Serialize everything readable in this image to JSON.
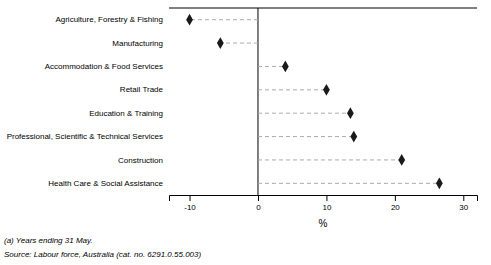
{
  "chart_data": {
    "type": "lollipop",
    "orientation": "horizontal",
    "categories": [
      "Agriculture, Forestry & Fishing",
      "Manufacturing",
      "Accommodation & Food Services",
      "Retail Trade",
      "Education & Training",
      "Professional, Scientific & Technical Services",
      "Construction",
      "Health Care & Social Assistance"
    ],
    "values": [
      -10.0,
      -5.5,
      4.0,
      10.0,
      13.5,
      14.0,
      21.0,
      26.5
    ],
    "xlim": [
      -13,
      32
    ],
    "xticks": [
      -10,
      0,
      10,
      20,
      30
    ],
    "xlabel": "%",
    "color": "#1a1a1a",
    "marker": "diamond",
    "line_style": "dashed",
    "grid": false,
    "annotations": [
      "(a) Years ending 31 May.",
      "Source: Labour force, Australia (cat. no. 6291.0.55.003)"
    ]
  }
}
